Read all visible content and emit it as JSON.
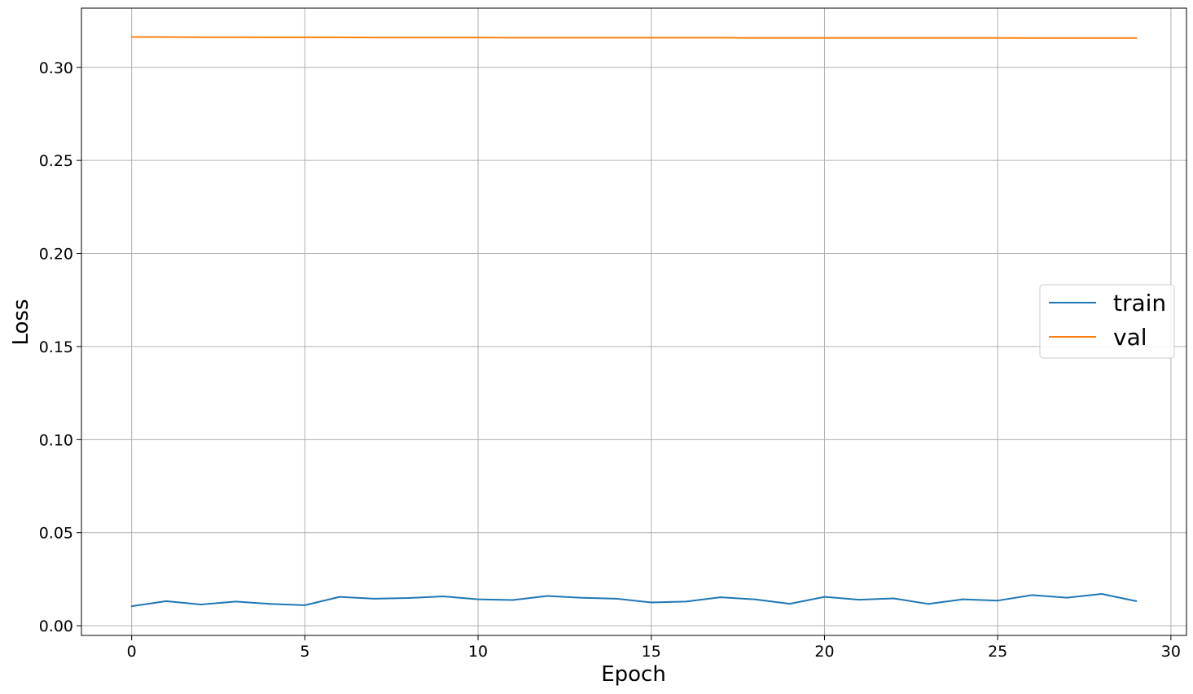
{
  "chart_data": {
    "type": "line",
    "title": "",
    "xlabel": "Epoch",
    "ylabel": "Loss",
    "xlim": [
      -1.45,
      30.45
    ],
    "ylim": [
      -0.0052,
      0.3318
    ],
    "xticks": [
      0,
      5,
      10,
      15,
      20,
      25,
      30
    ],
    "xtick_labels": [
      "0",
      "5",
      "10",
      "15",
      "20",
      "25",
      "30"
    ],
    "yticks": [
      0.0,
      0.05,
      0.1,
      0.15,
      0.2,
      0.25,
      0.3
    ],
    "ytick_labels": [
      "0.00",
      "0.05",
      "0.10",
      "0.15",
      "0.20",
      "0.25",
      "0.30"
    ],
    "grid": true,
    "legend_position": "center-right",
    "x": [
      0,
      1,
      2,
      3,
      4,
      5,
      6,
      7,
      8,
      9,
      10,
      11,
      12,
      13,
      14,
      15,
      16,
      17,
      18,
      19,
      20,
      21,
      22,
      23,
      24,
      25,
      26,
      27,
      28,
      29
    ],
    "series": [
      {
        "name": "train",
        "color": "#1f77b4",
        "values": [
          0.0105,
          0.0132,
          0.0114,
          0.013,
          0.0117,
          0.011,
          0.0155,
          0.0145,
          0.0149,
          0.0158,
          0.0142,
          0.0138,
          0.016,
          0.015,
          0.0145,
          0.0125,
          0.013,
          0.0153,
          0.0141,
          0.0118,
          0.0155,
          0.014,
          0.0147,
          0.0117,
          0.0142,
          0.0135,
          0.0165,
          0.0151,
          0.0171,
          0.0132
        ]
      },
      {
        "name": "val",
        "color": "#ff7f0e",
        "values": [
          0.3163,
          0.3163,
          0.3162,
          0.3162,
          0.3161,
          0.3161,
          0.3161,
          0.316,
          0.316,
          0.316,
          0.316,
          0.3159,
          0.3159,
          0.3159,
          0.3159,
          0.3159,
          0.3159,
          0.3159,
          0.3158,
          0.3158,
          0.3158,
          0.3158,
          0.3158,
          0.3158,
          0.3158,
          0.3158,
          0.3157,
          0.3157,
          0.3157,
          0.3157
        ]
      }
    ]
  }
}
